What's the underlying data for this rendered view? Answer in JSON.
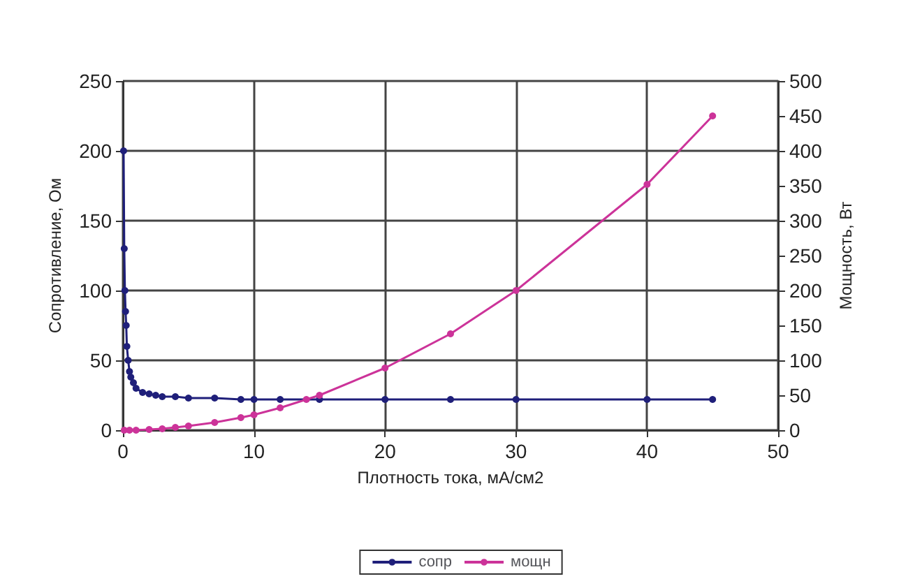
{
  "chart_data": {
    "type": "line",
    "xlabel": "Плотность тока, мА/см2",
    "ylabel": "Сопротивление, Ом",
    "y2label": "Мощность, Вт",
    "xlim": [
      0,
      50
    ],
    "xticks": [
      0,
      10,
      20,
      30,
      40,
      50
    ],
    "ylim": [
      0,
      250
    ],
    "yticks": [
      0,
      50,
      100,
      150,
      200,
      250
    ],
    "y2lim": [
      0,
      500
    ],
    "y2ticks": [
      0,
      50,
      100,
      150,
      200,
      250,
      300,
      350,
      400,
      450,
      500
    ],
    "grid": true,
    "legend": "bottom",
    "marker": "circle",
    "line_style": "solid",
    "series": [
      {
        "name": "сопр",
        "color": "#1f1f7a",
        "x": [
          0.05,
          0.1,
          0.15,
          0.2,
          0.25,
          0.3,
          0.4,
          0.5,
          0.6,
          0.8,
          1,
          1.5,
          2,
          2.5,
          3,
          4,
          5,
          7,
          9,
          10,
          12,
          15,
          20,
          25,
          30,
          40,
          45
        ],
        "values": [
          200,
          130,
          100,
          85,
          75,
          60,
          50,
          42,
          38,
          34,
          30,
          27,
          26,
          25,
          24,
          24,
          23,
          23,
          22,
          22,
          22,
          22,
          22,
          22,
          22,
          22,
          22
        ]
      },
      {
        "name": "мощн",
        "color": "#cc3399",
        "axis": "y2",
        "x": [
          0.1,
          0.5,
          1,
          2,
          3,
          4,
          5,
          7,
          9,
          10,
          12,
          14,
          15,
          20,
          25,
          30,
          40,
          45
        ],
        "values": [
          0,
          0,
          0,
          1,
          2,
          4,
          6,
          11,
          18,
          22,
          32,
          44,
          50,
          89,
          138,
          200,
          352,
          450
        ]
      }
    ]
  }
}
